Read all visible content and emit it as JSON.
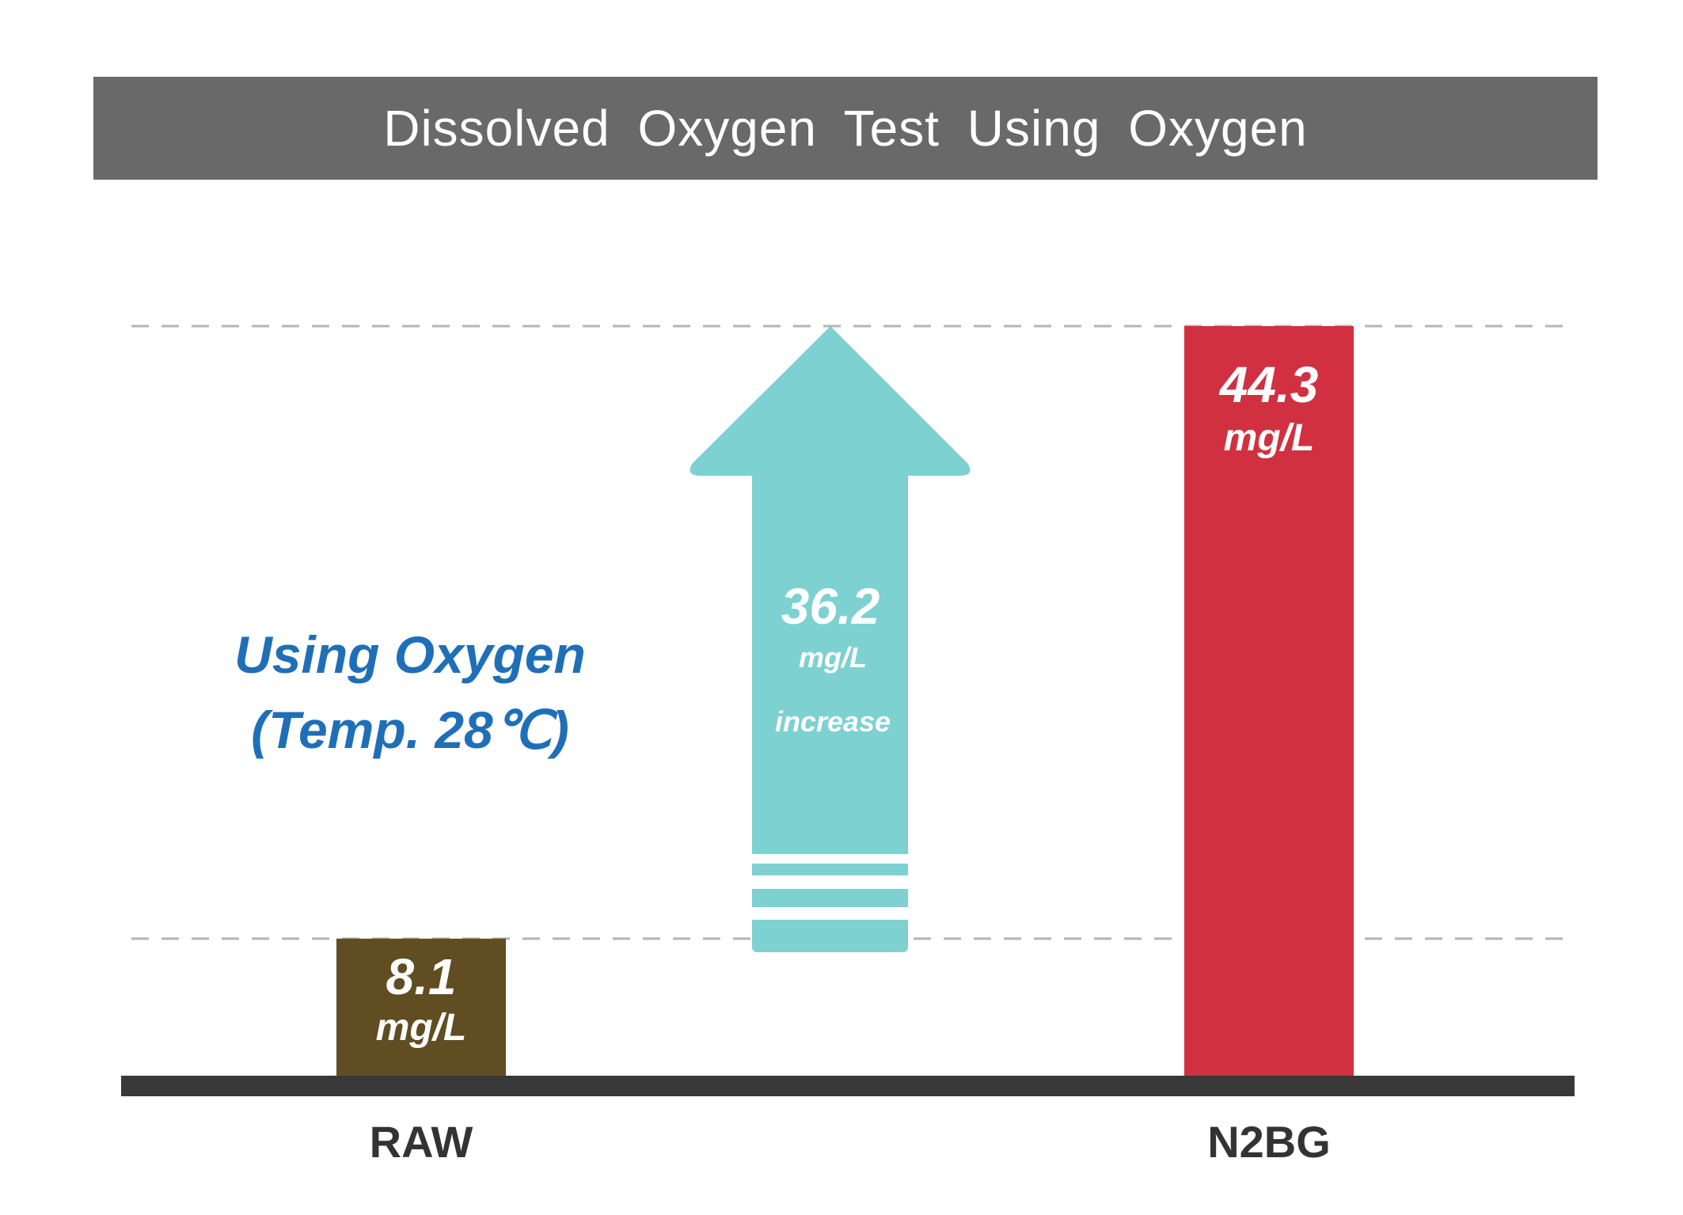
{
  "chart_data": {
    "type": "bar",
    "title": "Dissolved Oxygen Test Using Oxygen",
    "subtitle": [
      "Using Oxygen",
      "(Temp. 28℃)"
    ],
    "categories": [
      "RAW",
      "N2BG"
    ],
    "values": [
      8.1,
      44.3
    ],
    "unit": "mg/L",
    "value_labels": [
      "8.1",
      "44.3"
    ],
    "increase": {
      "value": 36.2,
      "label": "36.2",
      "unit": "mg/L",
      "text": "increase"
    },
    "ylim": [
      0,
      50
    ],
    "gridlines": [
      8.1,
      44.3
    ],
    "colors": {
      "raw": "#614d22",
      "n2bg": "#d13040",
      "arrow": "#7dd1d0",
      "subtitle": "#1f6fb8",
      "title_bar": "#686968",
      "baseline": "#383838",
      "gridline": "#b4b4b4"
    }
  }
}
